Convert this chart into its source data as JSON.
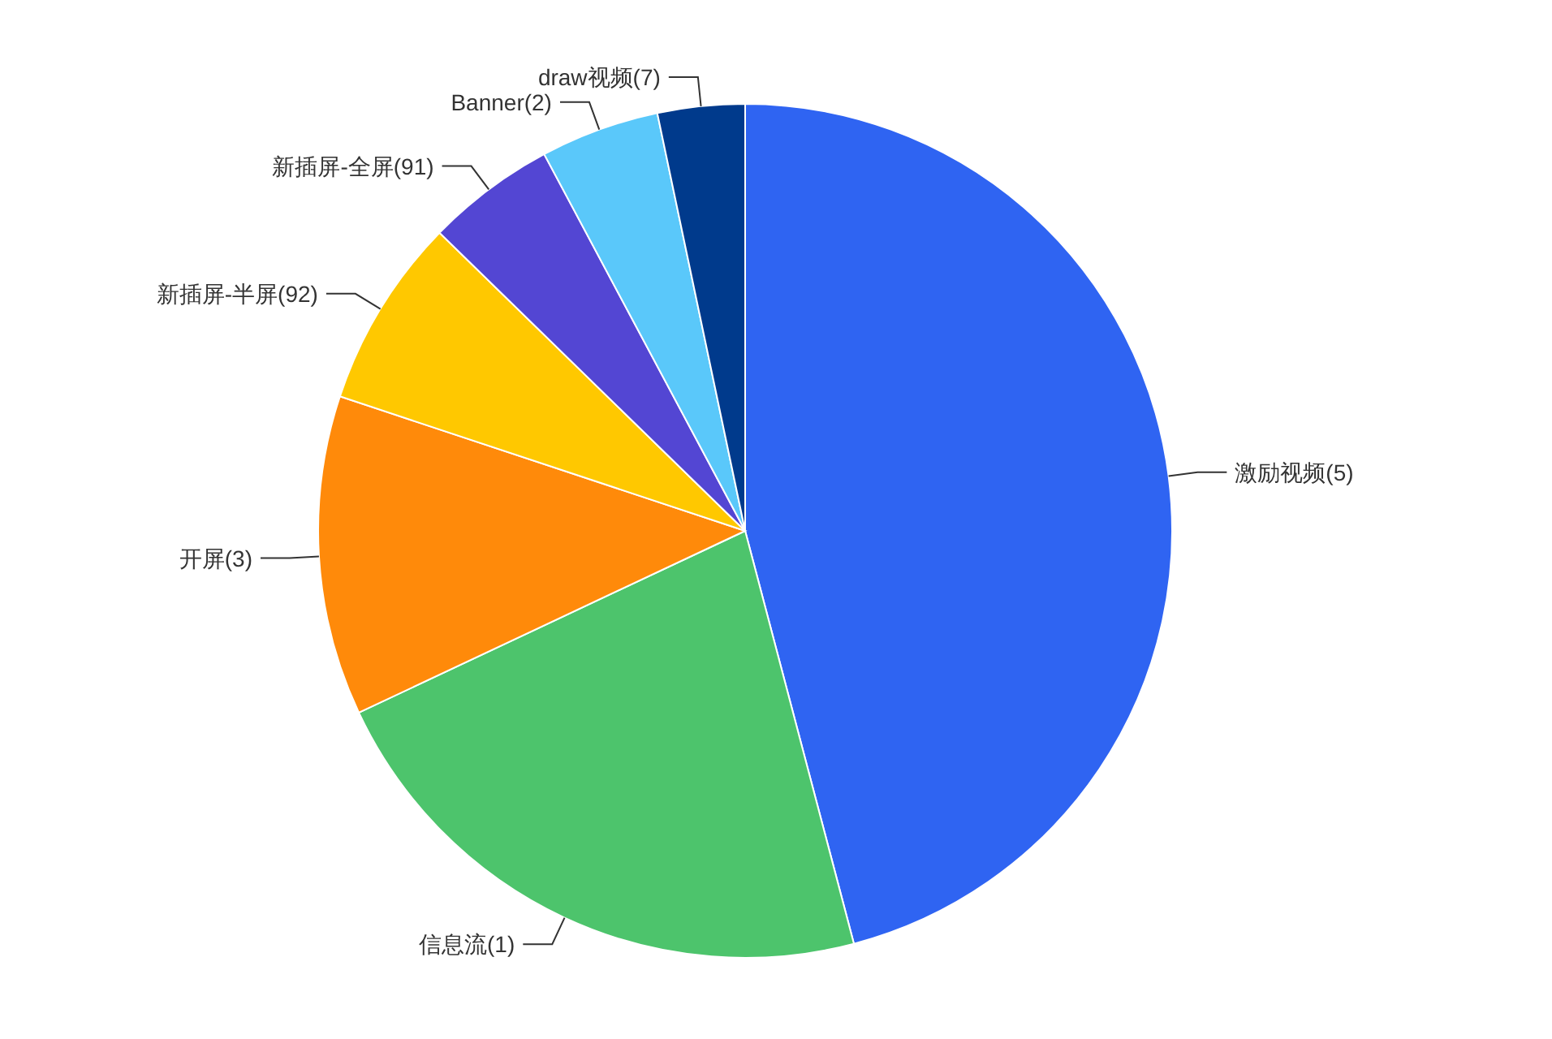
{
  "chart_data": {
    "type": "pie",
    "categories": [
      "激励视频(5)",
      "信息流(1)",
      "开屏(3)",
      "新插屏-半屏(92)",
      "新插屏-全屏(91)",
      "Banner(2)",
      "draw视频(7)"
    ],
    "values": [
      45.9,
      22.1,
      12.1,
      7.2,
      4.9,
      4.5,
      3.3
    ],
    "colors": [
      "#2f64f2",
      "#4dc46c",
      "#ff8a0a",
      "#ffc800",
      "#5346d3",
      "#5ac8fa",
      "#003a8c"
    ]
  }
}
